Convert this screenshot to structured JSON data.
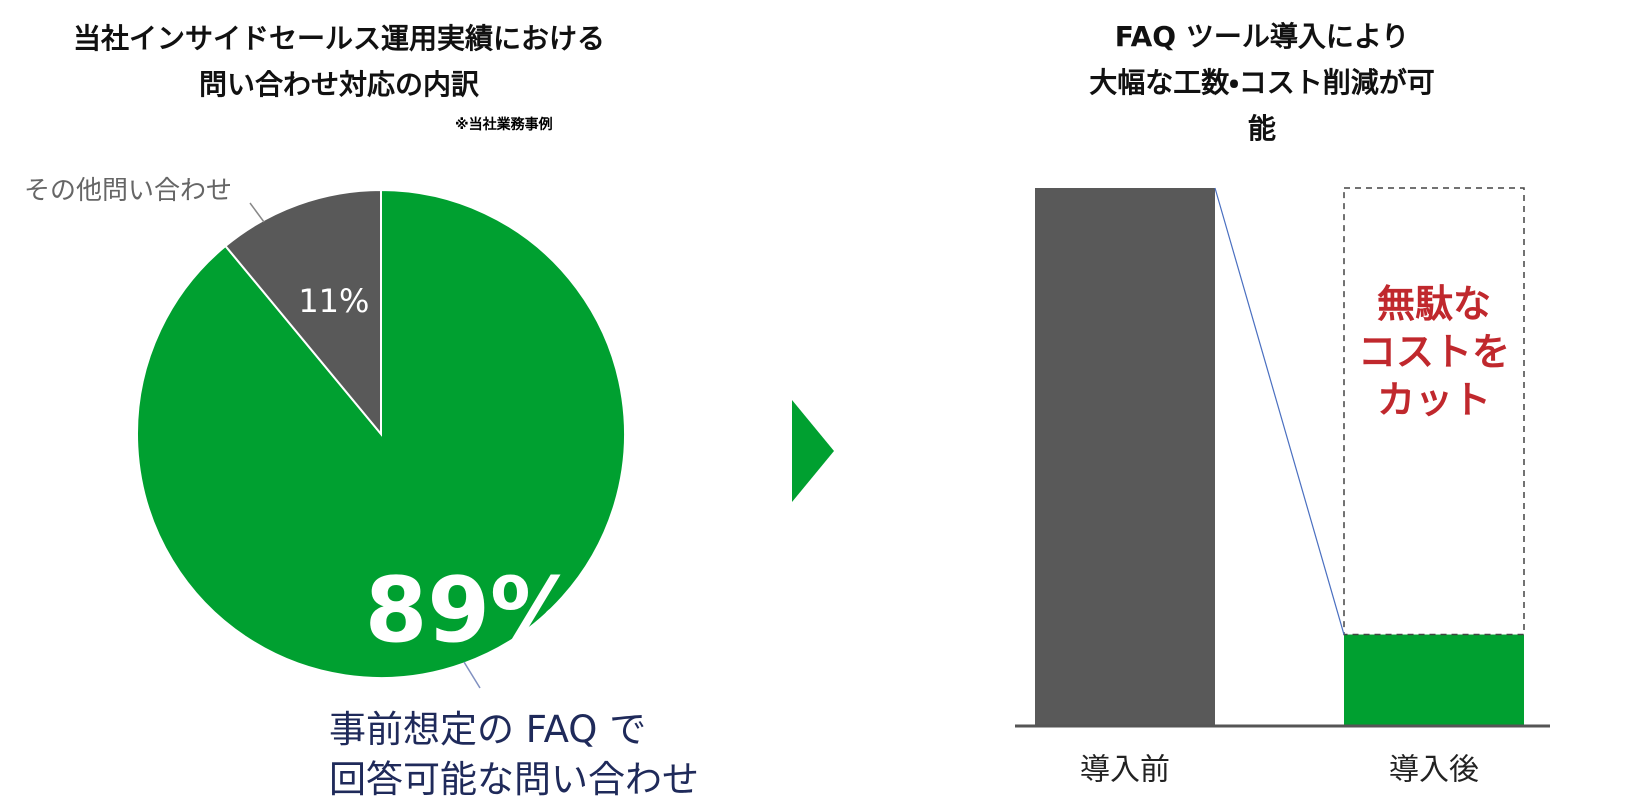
{
  "chart_data": [
    {
      "type": "pie",
      "title": "当社インサイドセールス運用実績における\n問い合わせ対応の内訳",
      "note": "※当社業務事例",
      "categories": [
        "事前想定の FAQ で\n回答可能な問い合わせ",
        "その他問い合わせ"
      ],
      "values": [
        89,
        11
      ],
      "value_labels": [
        "89%",
        "11%"
      ],
      "colors": [
        "#00a030",
        "#595959"
      ]
    },
    {
      "type": "bar",
      "title": "FAQ ツール導入により\n大幅な工数・コスト削減が可能",
      "categories": [
        "導入前",
        "導入後"
      ],
      "values": [
        100,
        17
      ],
      "colors": [
        "#595959",
        "#00a030"
      ],
      "annotation": "無駄な\nコストを\nカット"
    }
  ]
}
